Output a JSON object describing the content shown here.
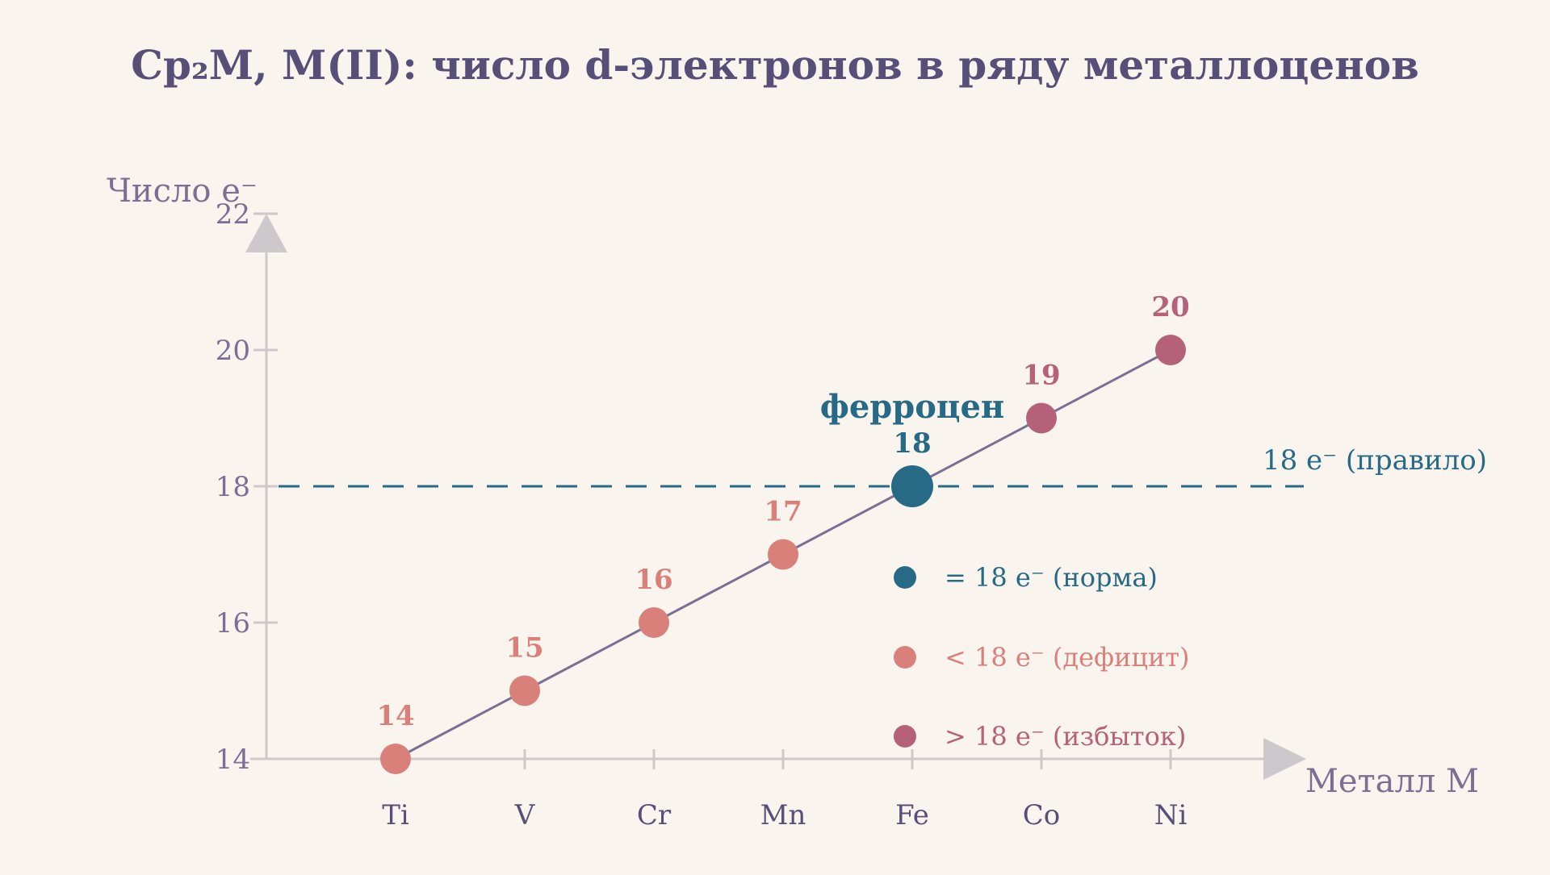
{
  "colors": {
    "background": "#faf4ee",
    "title": "#565078",
    "axis": "#cdc8cc",
    "tick_label": "#7a7094",
    "line": "#7a7094",
    "norm": "#276a86",
    "deficit": "#d9807a",
    "excess": "#b5617a"
  },
  "chart_data": {
    "type": "line",
    "title": "Cp₂M, M(II): число d-электронов в ряду металлоценов",
    "xlabel": "Металл M",
    "ylabel": "Число e⁻",
    "categories": [
      "Ti",
      "V",
      "Cr",
      "Mn",
      "Fe",
      "Co",
      "Ni"
    ],
    "values": [
      14,
      15,
      16,
      17,
      18,
      19,
      20
    ],
    "data_labels": [
      "14",
      "15",
      "16",
      "17",
      "18",
      "19",
      "20"
    ],
    "point_class": [
      "deficit",
      "deficit",
      "deficit",
      "deficit",
      "norm",
      "excess",
      "excess"
    ],
    "ylim": [
      14,
      22
    ],
    "yticks": [
      14,
      16,
      18,
      20,
      22
    ],
    "ytick_labels": [
      "14",
      "16",
      "18",
      "20",
      "22"
    ],
    "reference_line": {
      "y": 18,
      "label": "18 e⁻ (правило)",
      "style": "dashed"
    },
    "annotations": [
      {
        "category": "Fe",
        "text": "ферроцен"
      }
    ],
    "legend": {
      "placement": "inside-lower-right",
      "entries": [
        {
          "class": "norm",
          "label": "= 18 e⁻ (норма)"
        },
        {
          "class": "deficit",
          "label": "< 18 e⁻ (дефицит)"
        },
        {
          "class": "excess",
          "label": "> 18 e⁻ (избыток)"
        }
      ]
    },
    "grid": false
  }
}
